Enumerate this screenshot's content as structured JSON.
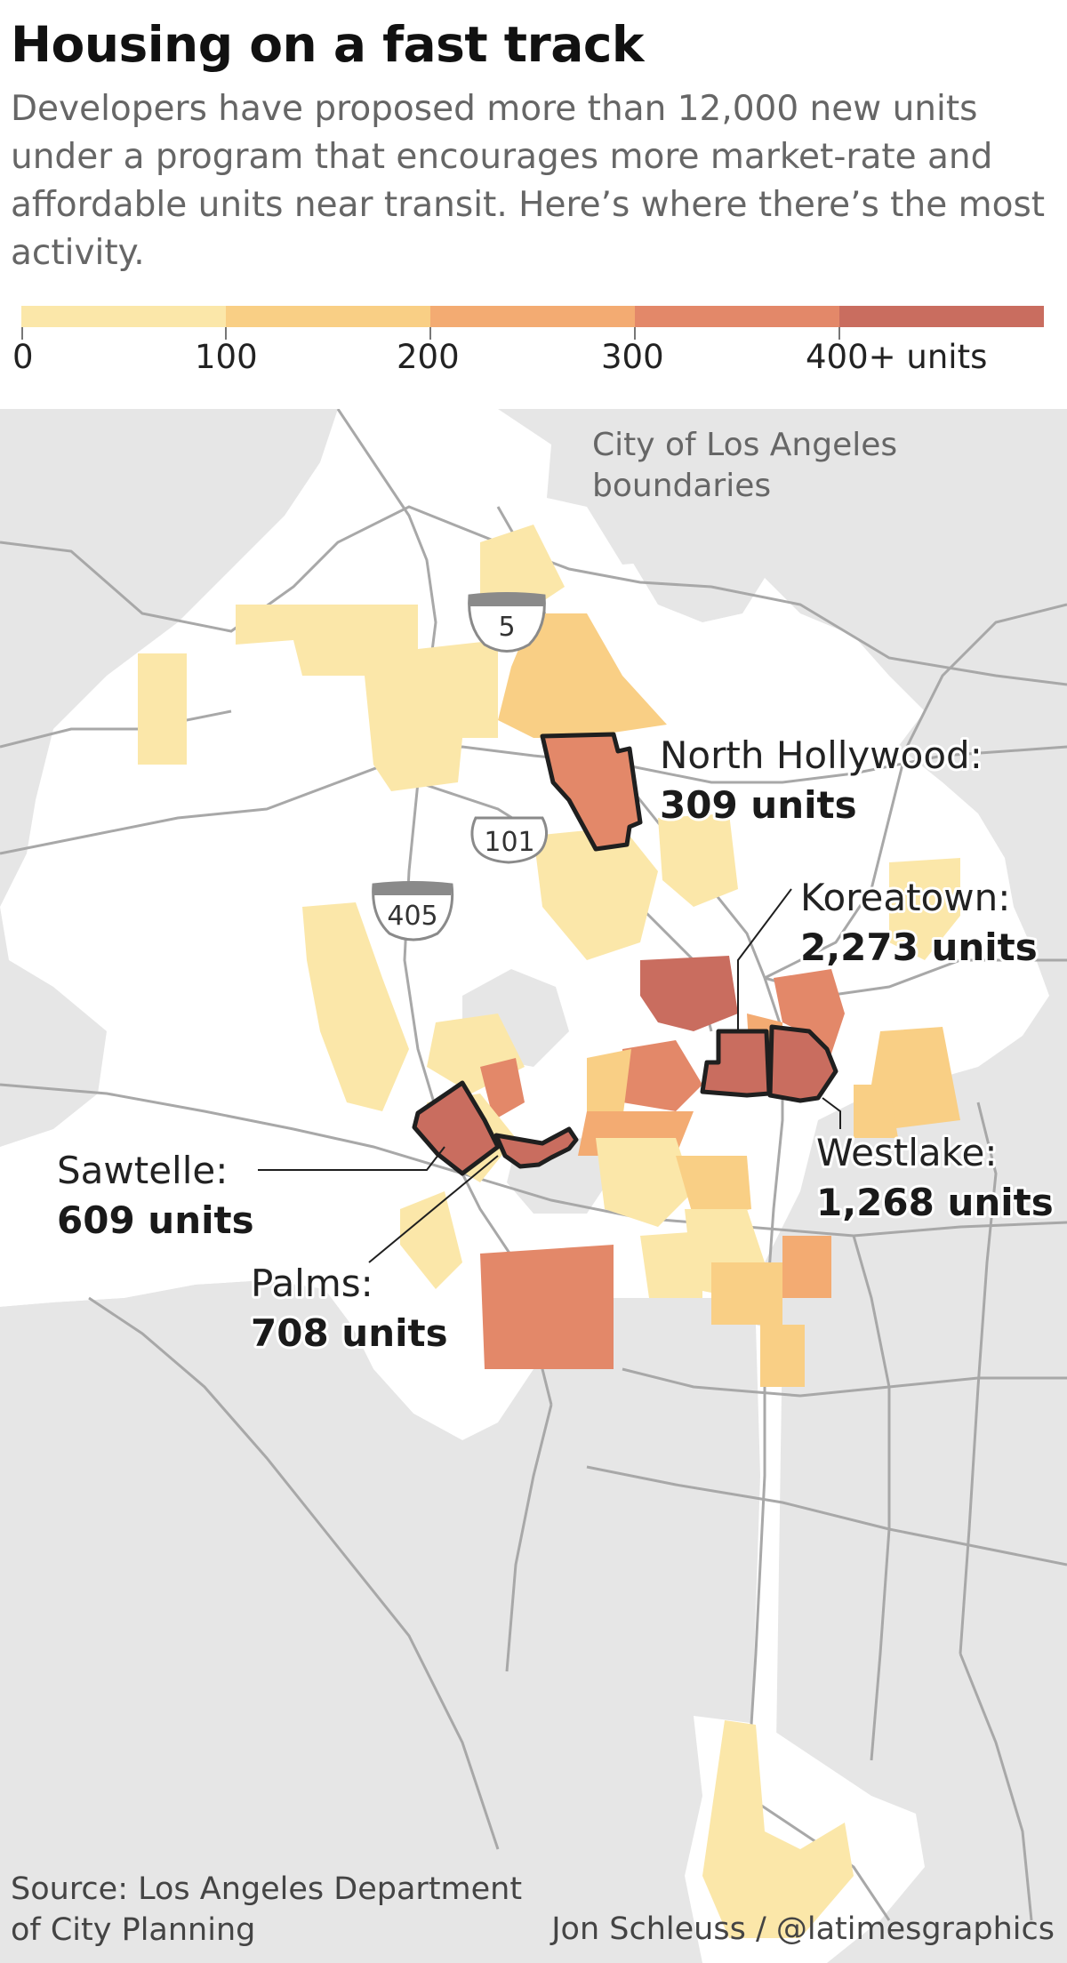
{
  "header": {
    "title": "Housing on a fast track",
    "subtitle": "Developers have proposed more than 12,000 new units under a program that encourages more market-rate and affordable units near transit. Here’s where there’s the most activity."
  },
  "legend": {
    "bins": [
      {
        "label": "0",
        "color": "#fbe7a9"
      },
      {
        "label": "100",
        "color": "#f9cf85"
      },
      {
        "label": "200",
        "color": "#f3ab72"
      },
      {
        "label": "300",
        "color": "#e38869"
      },
      {
        "label": "400+ units",
        "color": "#c96d5f"
      }
    ]
  },
  "map": {
    "boundary_label_line1": "City of Los Angeles",
    "boundary_label_line2": "boundaries",
    "colors": {
      "land": "#e6e6e6",
      "city": "#ffffff",
      "road": "#a8a8a8",
      "outline": "#1f1f1f"
    },
    "shields": {
      "i5": "5",
      "us101": "101",
      "i405": "405"
    },
    "callouts": {
      "north_hollywood": {
        "name": "North Hollywood:",
        "units": "309 units"
      },
      "koreatown": {
        "name": "Koreatown:",
        "units": "2,273 units"
      },
      "westlake": {
        "name": "Westlake:",
        "units": "1,268 units"
      },
      "sawtelle": {
        "name": "Sawtelle:",
        "units": "609 units"
      },
      "palms": {
        "name": "Palms:",
        "units": "708 units"
      }
    }
  },
  "footer": {
    "source_line1": "Source: Los Angeles Department",
    "source_line2": "of City Planning",
    "credit": "Jon Schleuss / @latimesgraphics"
  }
}
